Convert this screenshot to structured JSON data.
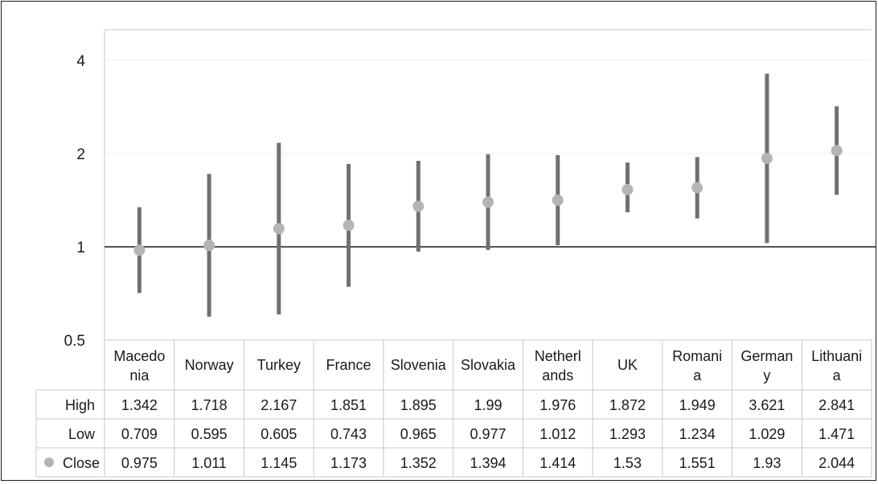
{
  "chart_data": {
    "type": "stock-high-low-close",
    "y_scale": "log2",
    "ylim": [
      0.5,
      4.3
    ],
    "y_ticks": [
      {
        "value": 0.5,
        "label": "0.5"
      },
      {
        "value": 1,
        "label": "1"
      },
      {
        "value": 2,
        "label": "2"
      },
      {
        "value": 4,
        "label": "4"
      }
    ],
    "reference_line": 1,
    "grid": true,
    "categories": [
      {
        "name": "Macedonia",
        "lines": [
          "Macedo",
          "nia"
        ]
      },
      {
        "name": "Norway",
        "lines": [
          "Norway"
        ]
      },
      {
        "name": "Turkey",
        "lines": [
          "Turkey"
        ]
      },
      {
        "name": "France",
        "lines": [
          "France"
        ]
      },
      {
        "name": "Slovenia",
        "lines": [
          "Slovenia"
        ]
      },
      {
        "name": "Slovakia",
        "lines": [
          "Slovakia"
        ]
      },
      {
        "name": "Netherlands",
        "lines": [
          "Netherl",
          "ands"
        ]
      },
      {
        "name": "UK",
        "lines": [
          "UK"
        ]
      },
      {
        "name": "Romania",
        "lines": [
          "Romani",
          "a"
        ]
      },
      {
        "name": "Germany",
        "lines": [
          "German",
          "y"
        ]
      },
      {
        "name": "Lithuania",
        "lines": [
          "Lithuani",
          "a"
        ]
      }
    ],
    "series": [
      {
        "name": "High",
        "values": [
          1.342,
          1.718,
          2.167,
          1.851,
          1.895,
          1.99,
          1.976,
          1.872,
          1.949,
          3.621,
          2.841
        ]
      },
      {
        "name": "Low",
        "values": [
          0.709,
          0.595,
          0.605,
          0.743,
          0.965,
          0.977,
          1.012,
          1.293,
          1.234,
          1.029,
          1.471
        ]
      },
      {
        "name": "Close",
        "values": [
          0.975,
          1.011,
          1.145,
          1.173,
          1.352,
          1.394,
          1.414,
          1.53,
          1.551,
          1.93,
          2.044
        ]
      }
    ],
    "value_labels": {
      "High": [
        "1.342",
        "1.718",
        "2.167",
        "1.851",
        "1.895",
        "1.99",
        "1.976",
        "1.872",
        "1.949",
        "3.621",
        "2.841"
      ],
      "Low": [
        "0.709",
        "0.595",
        "0.605",
        "0.743",
        "0.965",
        "0.977",
        "1.012",
        "1.293",
        "1.234",
        "1.029",
        "1.471"
      ],
      "Close": [
        "0.975",
        "1.011",
        "1.145",
        "1.173",
        "1.352",
        "1.394",
        "1.414",
        "1.53",
        "1.551",
        "1.93",
        "2.044"
      ]
    },
    "colors": {
      "range_bar": "#707070",
      "close_marker": "#b4b4b4",
      "reference_line": "#1a1a1a",
      "gridline": "#ececec",
      "table_border": "#c8c8c8"
    }
  }
}
